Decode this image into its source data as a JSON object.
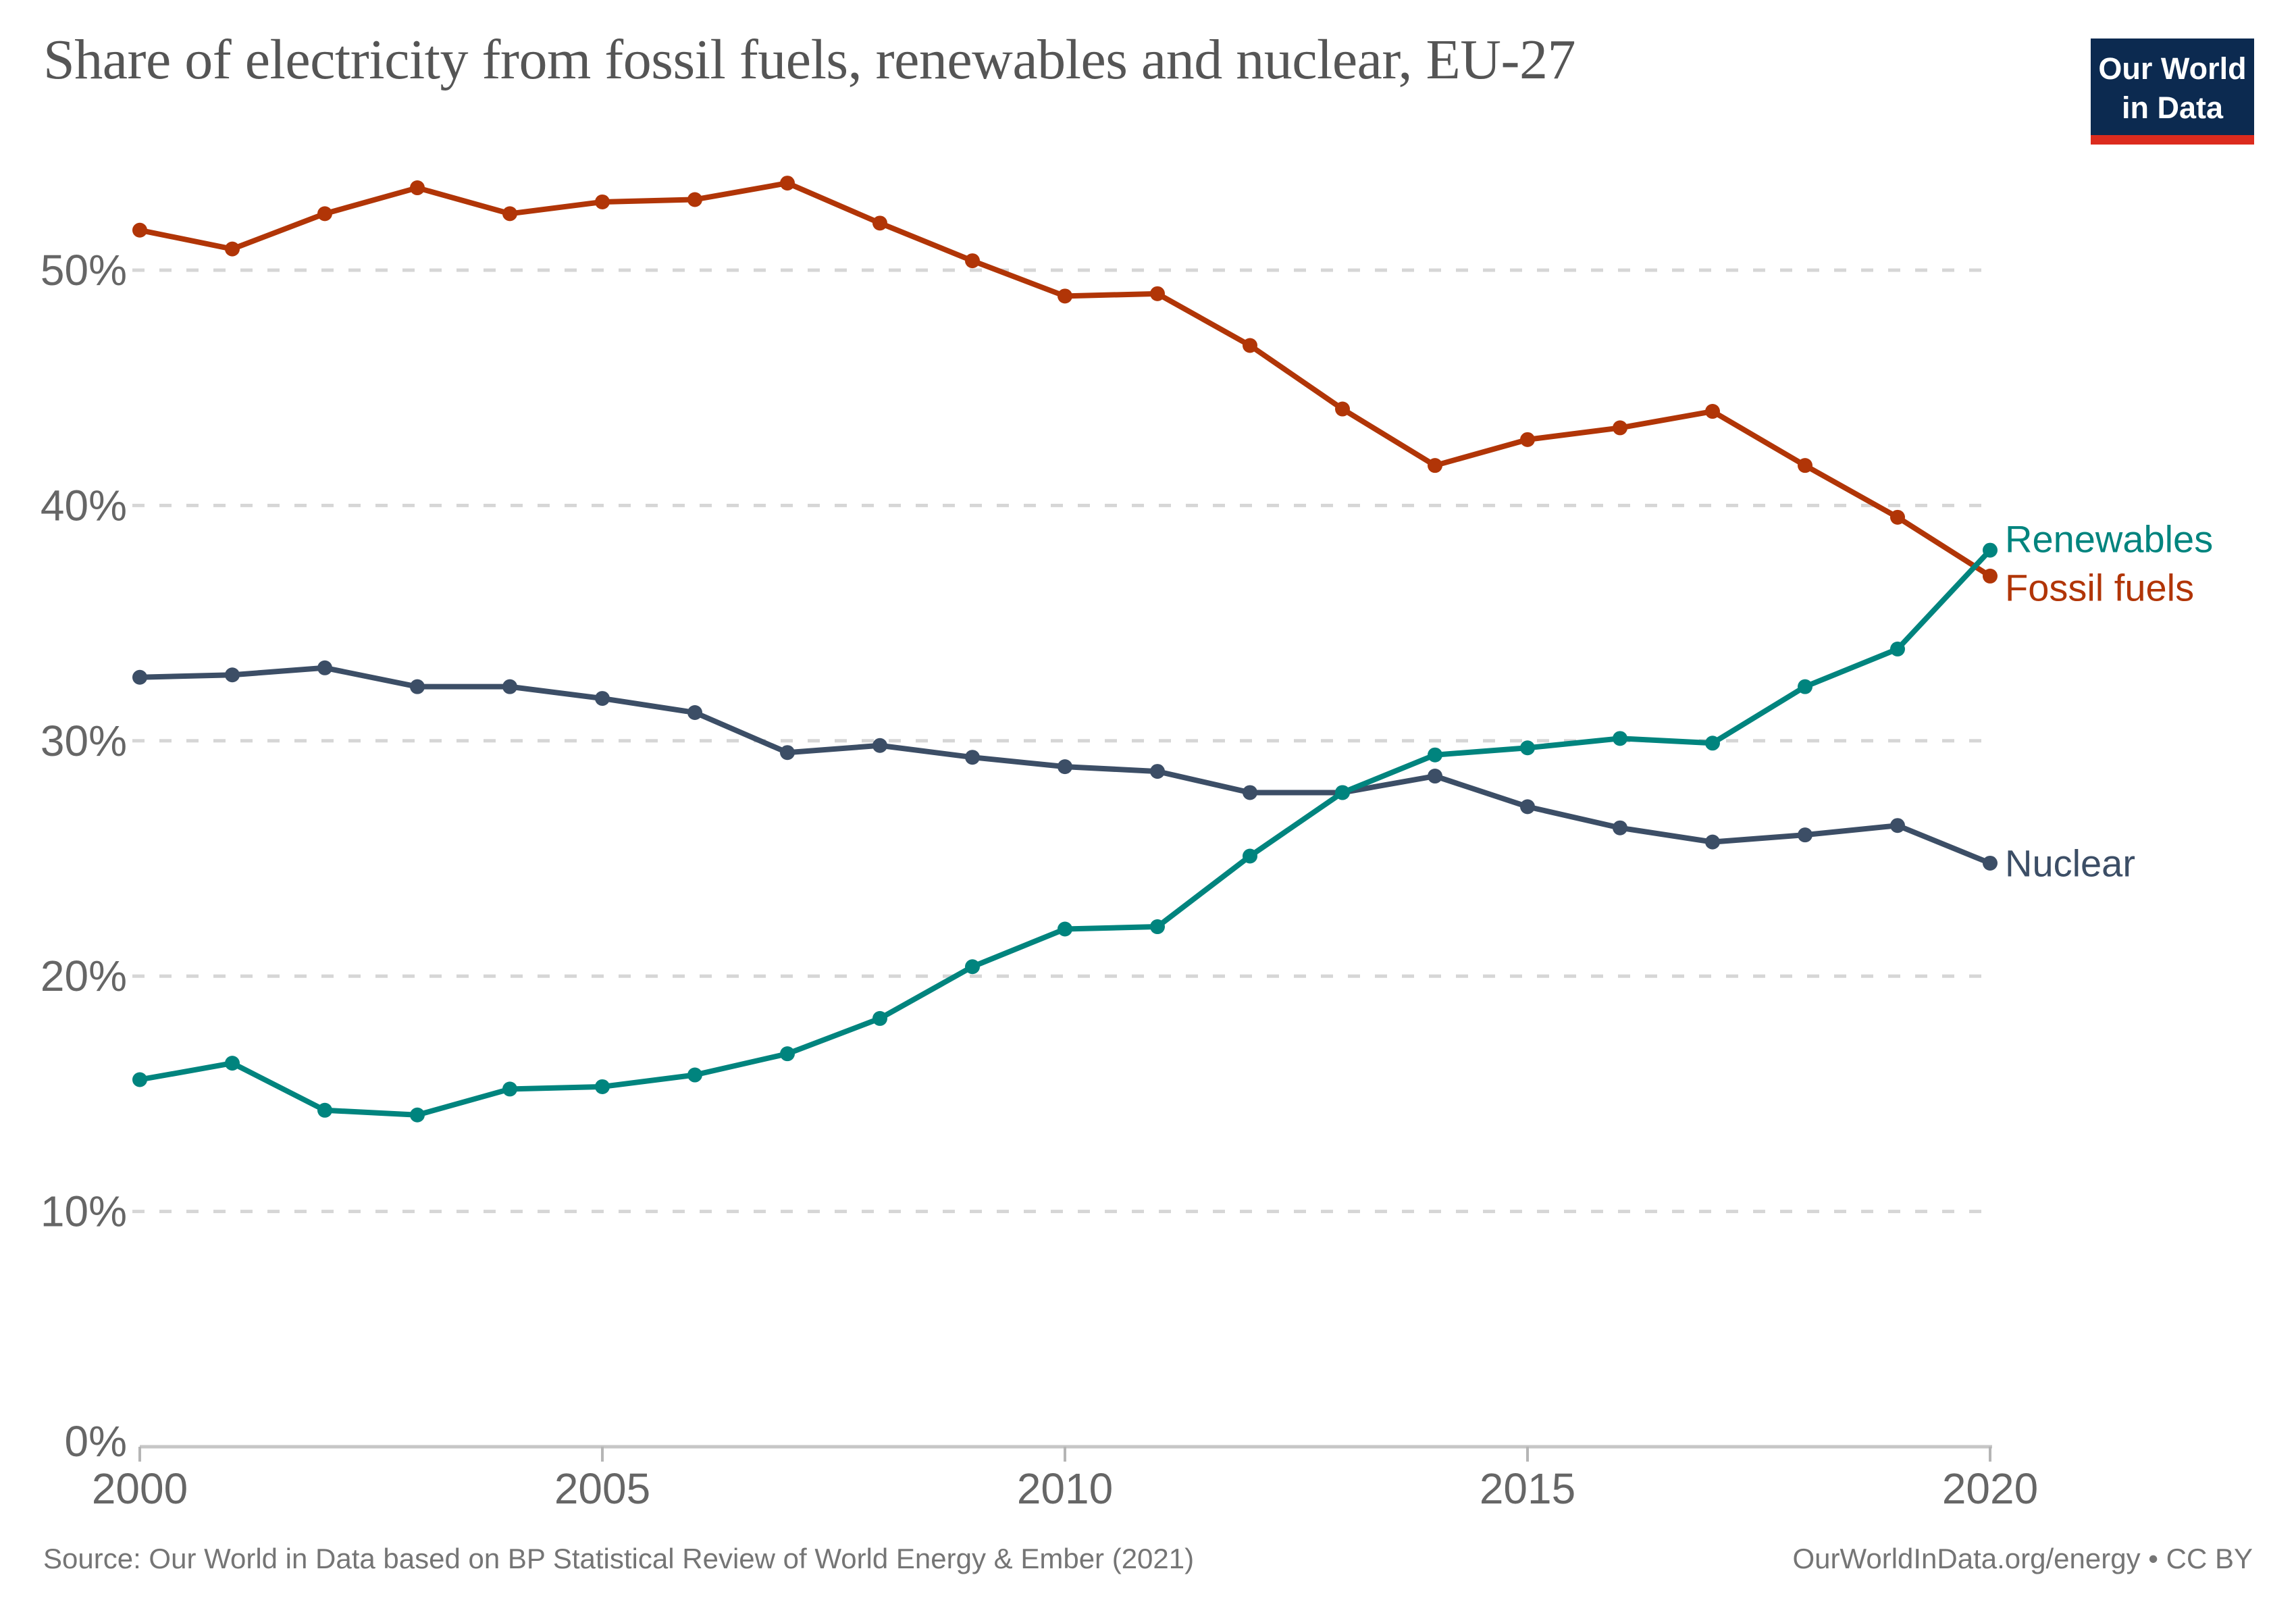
{
  "page": {
    "title": "Share of electricity from fossil fuels, renewables and nuclear, EU-27",
    "logo": {
      "line1": "Our World",
      "line2": "in Data"
    },
    "footer": {
      "source": "Source: Our World in Data based on BP Statistical Review of World Energy & Ember (2021)",
      "credit": "OurWorldInData.org/energy • CC BY"
    }
  },
  "colors": {
    "fossil": "#B13507",
    "renewables": "#00847E",
    "nuclear": "#3C4E66",
    "title_text": "#555555",
    "axis_text": "#666666",
    "gridline": "#D6D6D6",
    "axis_line": "#C6C6C6",
    "tick_mark": "#B5B5B5",
    "footer_text": "#757575",
    "logo_bg": "#0C2A50",
    "logo_stripe": "#DC2B1E",
    "background": "#FFFFFF"
  },
  "chart_data": {
    "type": "line",
    "title": "Share of electricity from fossil fuels, renewables and nuclear, EU-27",
    "xlabel": "",
    "ylabel": "",
    "x": [
      2000,
      2001,
      2002,
      2003,
      2004,
      2005,
      2006,
      2007,
      2008,
      2009,
      2010,
      2011,
      2012,
      2013,
      2014,
      2015,
      2016,
      2017,
      2018,
      2019,
      2020
    ],
    "series": [
      {
        "name": "Fossil fuels",
        "color_key": "fossil",
        "values": [
          51.7,
          50.9,
          52.4,
          53.5,
          52.4,
          52.9,
          53.0,
          53.7,
          52.0,
          50.4,
          48.9,
          49.0,
          46.8,
          44.1,
          41.7,
          42.8,
          43.3,
          44.0,
          41.7,
          39.5,
          37.0
        ]
      },
      {
        "name": "Renewables",
        "color_key": "renewables",
        "values": [
          15.6,
          16.3,
          14.3,
          14.1,
          15.2,
          15.3,
          15.8,
          16.7,
          18.2,
          20.4,
          22.0,
          22.1,
          25.1,
          27.8,
          29.4,
          29.7,
          30.1,
          29.9,
          32.3,
          33.9,
          38.1
        ]
      },
      {
        "name": "Nuclear",
        "color_key": "nuclear",
        "values": [
          32.7,
          32.8,
          33.1,
          32.3,
          32.3,
          31.8,
          31.2,
          29.5,
          29.8,
          29.3,
          28.9,
          28.7,
          27.8,
          27.8,
          28.5,
          27.2,
          26.3,
          25.7,
          26.0,
          26.4,
          24.8
        ]
      }
    ],
    "xlim": [
      2000,
      2020
    ],
    "ylim": [
      0,
      55
    ],
    "xticks": [
      2000,
      2005,
      2010,
      2015,
      2020
    ],
    "yticks": [
      0,
      10,
      20,
      30,
      40,
      50
    ],
    "ytick_format": "{v}%",
    "grid": "horizontal-dashed",
    "legend_position": "end-of-line-labels",
    "units": "% of electricity generation"
  }
}
